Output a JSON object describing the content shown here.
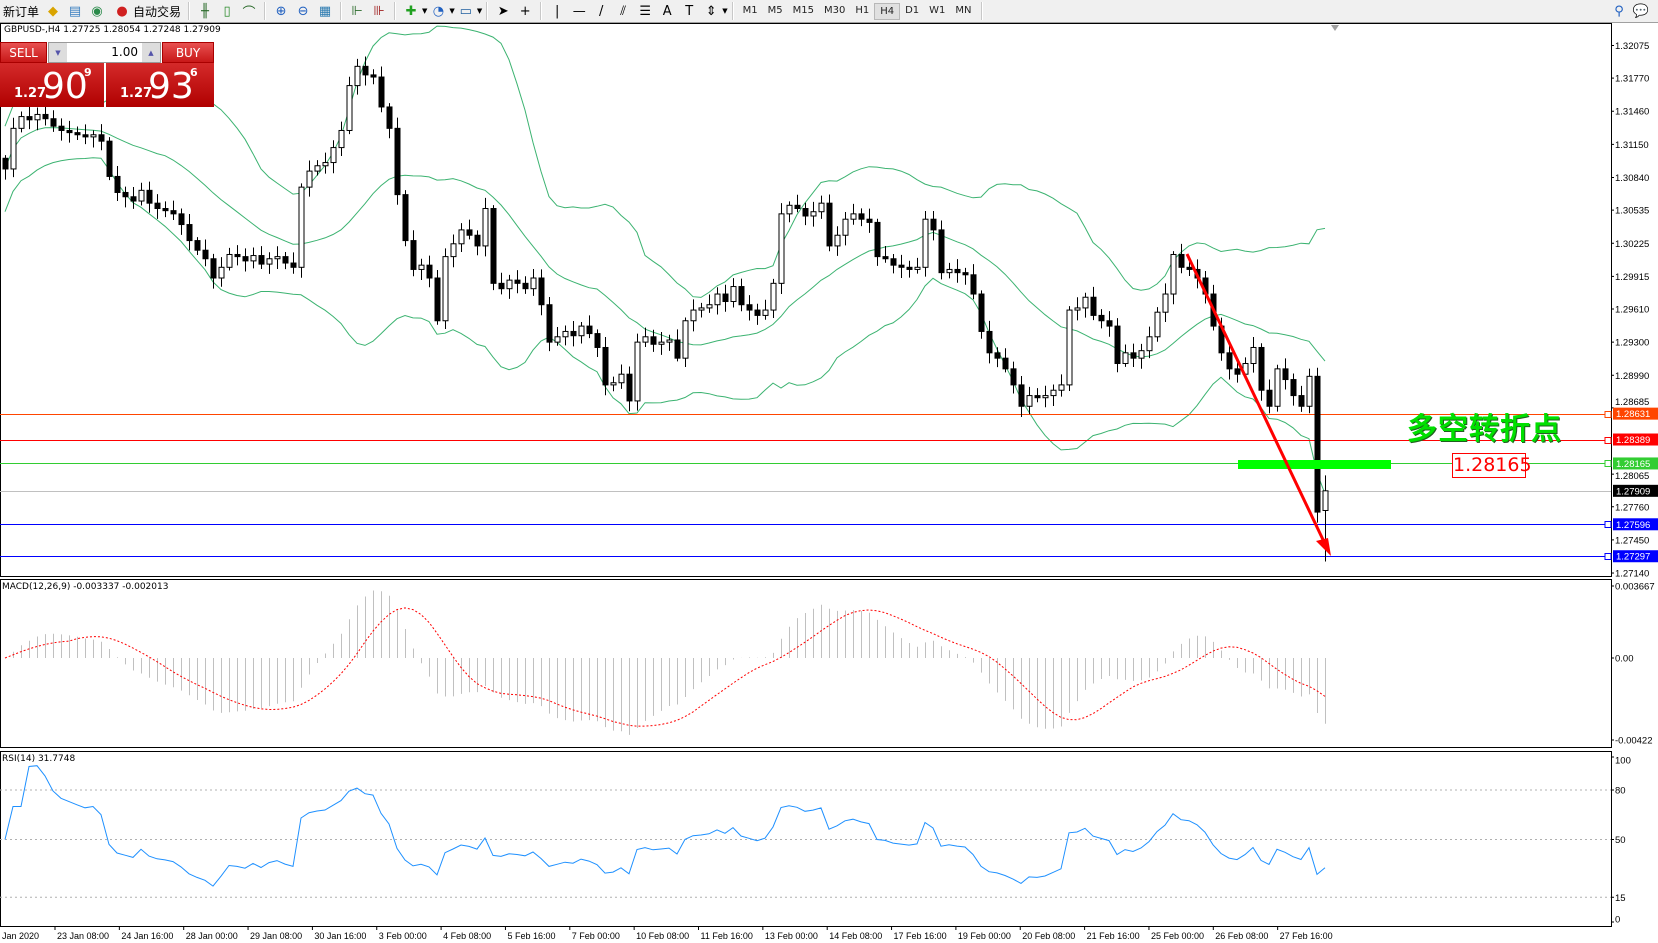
{
  "toolbar": {
    "new_order": "新订单",
    "auto_trading": "自动交易",
    "timeframes": [
      "M1",
      "M5",
      "M15",
      "M30",
      "H1",
      "H4",
      "D1",
      "W1",
      "MN"
    ],
    "active_timeframe": "H4",
    "icons": [
      "new-order-icon",
      "gold-icon",
      "history-center-icon",
      "signals-icon",
      "auto-trading-icon",
      "bar-chart-icon",
      "candlestick-icon",
      "line-chart-icon",
      "zoom-in-icon",
      "zoom-out-icon",
      "tile-windows-icon",
      "auto-scroll-icon",
      "chart-shift-icon",
      "indicators-icon",
      "periods-icon",
      "templates-icon",
      "cursor-icon",
      "crosshair-icon",
      "vertical-line-icon",
      "horizontal-line-icon",
      "trendline-icon",
      "fibo-fan-icon",
      "fibo-retracement-icon",
      "text-icon",
      "text-label-icon",
      "arrows-icon",
      "search-icon",
      "community-icon"
    ]
  },
  "chart": {
    "symbol_info": "GBPUSD-,H4  1.27725 1.28054 1.27248 1.27909"
  },
  "one_click": {
    "sell_label": "SELL",
    "buy_label": "BUY",
    "lot": "1.00",
    "sell_price": {
      "prefix": "1.27",
      "big": "90",
      "sup": "9"
    },
    "buy_price": {
      "prefix": "1.27",
      "big": "93",
      "sup": "6"
    }
  },
  "annotations": {
    "turning_point_text": "多空转折点",
    "level_box": "1.28165"
  },
  "price_axis": {
    "ticks": [
      "1.32075",
      "1.31770",
      "1.31460",
      "1.31150",
      "1.30840",
      "1.30535",
      "1.30225",
      "1.29915",
      "1.29610",
      "1.29300",
      "1.28990",
      "1.28685",
      "1.28065",
      "1.27760",
      "1.27450",
      "1.27140"
    ]
  },
  "levels": [
    {
      "label": "1.28631",
      "color": "#ff4500"
    },
    {
      "label": "1.28389",
      "color": "#ff0000"
    },
    {
      "label": "1.28165",
      "color": "#32cd32"
    },
    {
      "label": "1.27909",
      "color": "#000000",
      "line_color": "#c0c0c0"
    },
    {
      "label": "1.27596",
      "color": "#0000ff"
    },
    {
      "label": "1.27297",
      "color": "#0000ff"
    }
  ],
  "macd": {
    "label": "MACD(12,26,9) -0.003337 -0.002013",
    "axis": [
      "0.003667",
      "0.00",
      "-0.00422"
    ],
    "signal_color": "#ff0000",
    "hist_color": "#c0c0c0"
  },
  "rsi": {
    "label": "RSI(14) 31.7748",
    "axis": [
      "100",
      "80",
      "50",
      "15",
      "0"
    ],
    "color": "#1e90ff"
  },
  "time_axis": [
    "Jan 2020",
    "23 Jan 08:00",
    "24 Jan 16:00",
    "28 Jan 00:00",
    "29 Jan 08:00",
    "30 Jan 16:00",
    "3 Feb 00:00",
    "4 Feb 08:00",
    "5 Feb 16:00",
    "7 Feb 00:00",
    "10 Feb 08:00",
    "11 Feb 16:00",
    "13 Feb 00:00",
    "14 Feb 08:00",
    "17 Feb 16:00",
    "19 Feb 00:00",
    "20 Feb 08:00",
    "21 Feb 16:00",
    "25 Feb 00:00",
    "26 Feb 08:00",
    "27 Feb 16:00"
  ],
  "chart_data": {
    "type": "candlestick",
    "symbol": "GBPUSD-",
    "timeframe": "H4",
    "indicators": [
      "Bollinger Bands",
      "MACD(12,26,9)",
      "RSI(14)"
    ],
    "band_color": "#3cb371",
    "closes": [
      1.3092,
      1.313,
      1.3141,
      1.3138,
      1.3143,
      1.3139,
      1.3132,
      1.3128,
      1.3126,
      1.3124,
      1.3122,
      1.3124,
      1.3118,
      1.3085,
      1.307,
      1.3066,
      1.3062,
      1.3072,
      1.306,
      1.3055,
      1.3053,
      1.305,
      1.304,
      1.3025,
      1.3016,
      1.3008,
      1.299,
      1.3,
      1.3012,
      1.301,
      1.3006,
      1.3011,
      1.3003,
      1.3008,
      1.301,
      1.3004,
      1.3,
      1.3075,
      1.309,
      1.3095,
      1.3098,
      1.3112,
      1.3128,
      1.317,
      1.3188,
      1.318,
      1.3178,
      1.315,
      1.313,
      1.3068,
      1.3025,
      1.2998,
      1.3002,
      1.299,
      1.295,
      1.301,
      1.3022,
      1.3035,
      1.303,
      1.302,
      1.3055,
      1.2985,
      1.298,
      1.2988,
      1.2985,
      1.298,
      1.299,
      1.2965,
      1.293,
      1.2935,
      1.294,
      1.2936,
      1.2945,
      1.2938,
      1.2925,
      1.289,
      1.2892,
      1.29,
      1.2875,
      1.293,
      1.2935,
      1.2928,
      1.293,
      1.2932,
      1.2915,
      1.295,
      1.296,
      1.2962,
      1.2965,
      1.2975,
      1.2968,
      1.2982,
      1.2965,
      1.296,
      1.2955,
      1.296,
      1.2985,
      1.305,
      1.3058,
      1.3055,
      1.3048,
      1.3052,
      1.306,
      1.302,
      1.303,
      1.3045,
      1.305,
      1.3045,
      1.3042,
      1.301,
      1.3008,
      1.3002,
      1.3,
      1.2998,
      1.3,
      1.3045,
      1.3035,
      1.2995,
      1.2998,
      1.2995,
      1.2993,
      1.2975,
      1.294,
      1.292,
      1.2915,
      1.2905,
      1.289,
      1.287,
      1.288,
      1.2878,
      1.288,
      1.2885,
      1.289,
      1.296,
      1.2962,
      1.2972,
      1.2955,
      1.295,
      1.2945,
      1.291,
      1.292,
      1.2915,
      1.2922,
      1.2935,
      1.2958,
      1.2975,
      1.3012,
      1.3,
      1.2998,
      1.299,
      1.2975,
      1.2945,
      1.292,
      1.2905,
      1.29,
      1.291,
      1.2925,
      1.2885,
      1.287,
      1.2905,
      1.2895,
      1.288,
      1.287,
      1.2898,
      1.2771,
      1.27909
    ],
    "last_bar": {
      "open": 1.27725,
      "high": 1.28054,
      "low": 1.27248,
      "close": 1.27909
    },
    "levels": [
      1.28631,
      1.28389,
      1.28165,
      1.27909,
      1.27596,
      1.27297
    ],
    "trend_arrow": {
      "from_price": 1.3015,
      "to_price": 1.2723,
      "color": "#ff0000"
    }
  }
}
